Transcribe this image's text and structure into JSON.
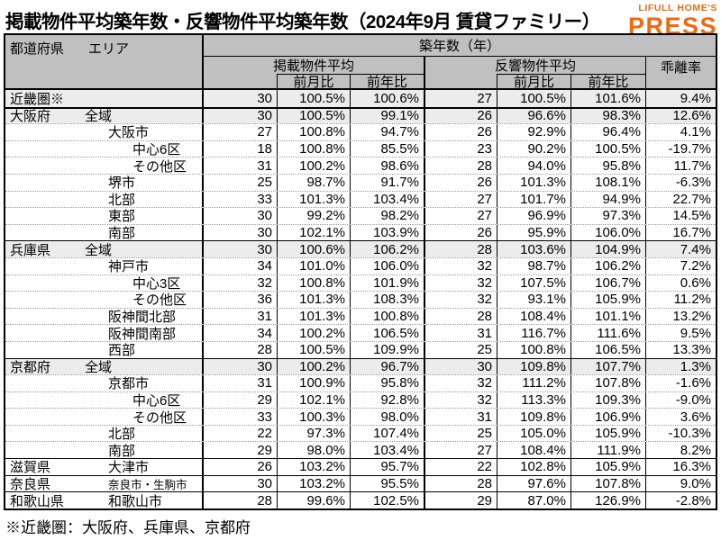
{
  "title": "掲載物件平均築年数・反響物件平均築年数（2024年9月 賃貸ファミリー）",
  "logo": {
    "top": "LIFULL HOME'S",
    "main": "PRESS"
  },
  "colors": {
    "accent_orange": "#ef6a10",
    "header_gray": "#c0c0c0",
    "band_gray": "#ececec"
  },
  "table": {
    "header": {
      "col_pref": "都道府県",
      "col_area": "エリア",
      "group_main": "築年数（年）",
      "group_listed": "掲載物件平均",
      "group_inquiry": "反響物件平均",
      "col_mom": "前月比",
      "col_yoy": "前年比",
      "col_gap": "乖離率"
    }
  },
  "footnote": "※近畿圏：大阪府、兵庫県、京都府",
  "chart_data": {
    "type": "table",
    "title": "掲載物件平均築年数・反響物件平均築年数（2024年9月 賃貸ファミリー）",
    "columns": [
      "都道府県",
      "エリア",
      "掲載物件平均 築年数(年)",
      "掲載物件平均 前月比",
      "掲載物件平均 前年比",
      "反響物件平均 築年数(年)",
      "反響物件平均 前月比",
      "反響物件平均 前年比",
      "乖離率"
    ],
    "rows": [
      {
        "pref": "近畿圏※",
        "area": "",
        "level": 0,
        "shaded": true,
        "sep": "none",
        "small": false,
        "cells": [
          "30",
          "100.5%",
          "100.6%",
          "27",
          "100.5%",
          "101.6%",
          "9.4%"
        ]
      },
      {
        "pref": "大阪府",
        "area": "全域",
        "level": 1,
        "shaded": true,
        "sep": "thick",
        "small": false,
        "cells": [
          "30",
          "100.5%",
          "99.1%",
          "26",
          "96.6%",
          "98.3%",
          "12.6%"
        ]
      },
      {
        "pref": "",
        "area": "大阪市",
        "level": 2,
        "shaded": false,
        "sep": "dotted",
        "small": false,
        "cells": [
          "27",
          "100.8%",
          "94.7%",
          "26",
          "92.9%",
          "96.4%",
          "4.1%"
        ]
      },
      {
        "pref": "",
        "area": "中心6区",
        "level": 3,
        "shaded": false,
        "sep": "dotted",
        "small": false,
        "cells": [
          "18",
          "100.8%",
          "85.5%",
          "23",
          "90.2%",
          "100.5%",
          "-19.7%"
        ]
      },
      {
        "pref": "",
        "area": "その他区",
        "level": 3,
        "shaded": false,
        "sep": "dotted",
        "small": false,
        "cells": [
          "31",
          "100.2%",
          "98.6%",
          "28",
          "94.0%",
          "95.8%",
          "11.7%"
        ]
      },
      {
        "pref": "",
        "area": "堺市",
        "level": 2,
        "shaded": false,
        "sep": "dotted",
        "small": false,
        "cells": [
          "25",
          "98.7%",
          "91.7%",
          "26",
          "101.3%",
          "108.1%",
          "-6.3%"
        ]
      },
      {
        "pref": "",
        "area": "北部",
        "level": 2,
        "shaded": false,
        "sep": "dotted",
        "small": false,
        "cells": [
          "33",
          "101.3%",
          "103.4%",
          "27",
          "101.7%",
          "94.9%",
          "22.7%"
        ]
      },
      {
        "pref": "",
        "area": "東部",
        "level": 2,
        "shaded": false,
        "sep": "dotted",
        "small": false,
        "cells": [
          "30",
          "99.2%",
          "98.2%",
          "27",
          "96.9%",
          "97.3%",
          "14.5%"
        ]
      },
      {
        "pref": "",
        "area": "南部",
        "level": 2,
        "shaded": false,
        "sep": "dotted",
        "small": false,
        "cells": [
          "30",
          "102.1%",
          "103.9%",
          "26",
          "95.9%",
          "106.0%",
          "16.7%"
        ]
      },
      {
        "pref": "兵庫県",
        "area": "全域",
        "level": 1,
        "shaded": true,
        "sep": "solid",
        "small": false,
        "cells": [
          "30",
          "100.6%",
          "106.2%",
          "28",
          "103.6%",
          "104.9%",
          "7.4%"
        ]
      },
      {
        "pref": "",
        "area": "神戸市",
        "level": 2,
        "shaded": false,
        "sep": "dotted",
        "small": false,
        "cells": [
          "34",
          "101.0%",
          "106.0%",
          "32",
          "98.7%",
          "106.2%",
          "7.2%"
        ]
      },
      {
        "pref": "",
        "area": "中心3区",
        "level": 3,
        "shaded": false,
        "sep": "dotted",
        "small": false,
        "cells": [
          "32",
          "100.8%",
          "101.9%",
          "32",
          "107.5%",
          "106.7%",
          "0.6%"
        ]
      },
      {
        "pref": "",
        "area": "その他区",
        "level": 3,
        "shaded": false,
        "sep": "dotted",
        "small": false,
        "cells": [
          "36",
          "101.3%",
          "108.3%",
          "32",
          "93.1%",
          "105.9%",
          "11.2%"
        ]
      },
      {
        "pref": "",
        "area": "阪神間北部",
        "level": 2,
        "shaded": false,
        "sep": "dotted",
        "small": false,
        "cells": [
          "31",
          "101.3%",
          "100.8%",
          "28",
          "108.4%",
          "101.1%",
          "13.2%"
        ]
      },
      {
        "pref": "",
        "area": "阪神間南部",
        "level": 2,
        "shaded": false,
        "sep": "dotted",
        "small": false,
        "cells": [
          "34",
          "100.2%",
          "106.5%",
          "31",
          "116.7%",
          "111.6%",
          "9.5%"
        ]
      },
      {
        "pref": "",
        "area": "西部",
        "level": 2,
        "shaded": false,
        "sep": "dotted",
        "small": false,
        "cells": [
          "28",
          "100.5%",
          "109.9%",
          "25",
          "100.8%",
          "106.5%",
          "13.3%"
        ]
      },
      {
        "pref": "京都府",
        "area": "全域",
        "level": 1,
        "shaded": true,
        "sep": "solid",
        "small": false,
        "cells": [
          "30",
          "100.2%",
          "96.7%",
          "30",
          "109.8%",
          "107.7%",
          "1.3%"
        ]
      },
      {
        "pref": "",
        "area": "京都市",
        "level": 2,
        "shaded": false,
        "sep": "dotted",
        "small": false,
        "cells": [
          "31",
          "100.9%",
          "95.8%",
          "32",
          "111.2%",
          "107.8%",
          "-1.6%"
        ]
      },
      {
        "pref": "",
        "area": "中心6区",
        "level": 3,
        "shaded": false,
        "sep": "dotted",
        "small": false,
        "cells": [
          "29",
          "102.1%",
          "92.8%",
          "32",
          "113.3%",
          "109.3%",
          "-9.0%"
        ]
      },
      {
        "pref": "",
        "area": "その他区",
        "level": 3,
        "shaded": false,
        "sep": "dotted",
        "small": false,
        "cells": [
          "33",
          "100.3%",
          "98.0%",
          "31",
          "109.8%",
          "106.9%",
          "3.6%"
        ]
      },
      {
        "pref": "",
        "area": "北部",
        "level": 2,
        "shaded": false,
        "sep": "dotted",
        "small": false,
        "cells": [
          "22",
          "97.3%",
          "107.4%",
          "25",
          "105.0%",
          "105.9%",
          "-10.3%"
        ]
      },
      {
        "pref": "",
        "area": "南部",
        "level": 2,
        "shaded": false,
        "sep": "dotted",
        "small": false,
        "cells": [
          "29",
          "98.0%",
          "103.4%",
          "27",
          "108.4%",
          "111.9%",
          "8.2%"
        ]
      },
      {
        "pref": "滋賀県",
        "area": "大津市",
        "level": 2,
        "shaded": false,
        "sep": "solid",
        "small": false,
        "cells": [
          "26",
          "103.2%",
          "95.7%",
          "22",
          "102.8%",
          "105.9%",
          "16.3%"
        ]
      },
      {
        "pref": "奈良県",
        "area": "奈良市・生駒市",
        "level": 2,
        "shaded": false,
        "sep": "solid",
        "small": true,
        "cells": [
          "30",
          "103.2%",
          "95.5%",
          "28",
          "97.6%",
          "107.8%",
          "9.0%"
        ]
      },
      {
        "pref": "和歌山県",
        "area": "和歌山市",
        "level": 2,
        "shaded": false,
        "sep": "solid",
        "small": false,
        "cells": [
          "28",
          "99.6%",
          "102.5%",
          "29",
          "87.0%",
          "126.9%",
          "-2.8%"
        ]
      }
    ]
  }
}
